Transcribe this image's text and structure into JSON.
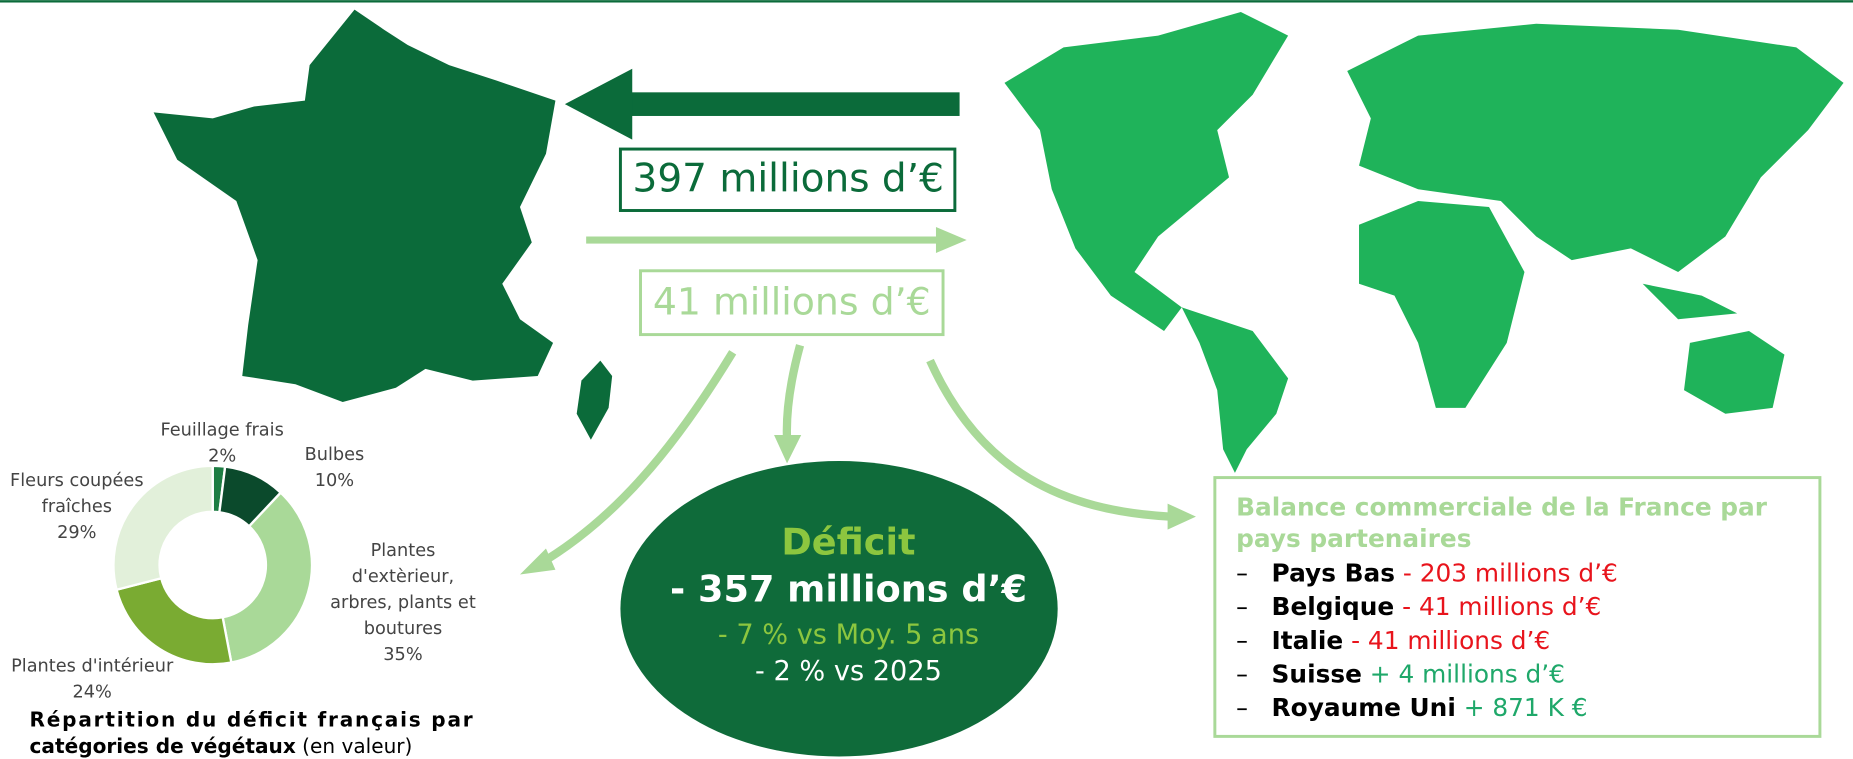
{
  "flows": {
    "import": "397 millions d’€",
    "export": "41 millions d’€"
  },
  "deficit": {
    "title": "Déficit",
    "value": "- 357 millions d’€",
    "vs_avg": "- 7 % vs Moy. 5 ans",
    "vs_year": "- 2 % vs 2025"
  },
  "donut": {
    "type": "pie",
    "categories": [
      [
        "Feuillage frais"
      ],
      [
        "Bulbes"
      ],
      [
        "Plantes",
        "d'extèrieur,",
        "arbres, plants et",
        "boutures"
      ],
      [
        "Plantes d'intérieur"
      ],
      [
        "Fleurs coupées",
        "fraîches"
      ]
    ],
    "values": [
      2,
      10,
      35,
      24,
      29
    ],
    "value_labels": [
      "2%",
      "10%",
      "35%",
      "24%",
      "29%"
    ],
    "colors": [
      "#1d7d43",
      "#0b4a2c",
      "#a9d998",
      "#7aab32",
      "#e2f0da"
    ],
    "caption": [
      "Répartition du déficit français par",
      "catégories de végétaux"
    ],
    "caption_note": "(en valeur)"
  },
  "partners": {
    "title": [
      "Balance commerciale de la France par",
      "pays partenaires"
    ],
    "items": [
      {
        "country": "Pays Bas",
        "balance": "- 203 millions d’€"
      },
      {
        "country": "Belgique",
        "balance": "- 41 millions d’€"
      },
      {
        "country": "Italie",
        "balance": "- 41 millions d’€"
      },
      {
        "country": "Suisse",
        "balance": "+ 4 millions d’€"
      },
      {
        "country": "Royaume Uni",
        "balance": "+ 871 K €"
      }
    ]
  }
}
